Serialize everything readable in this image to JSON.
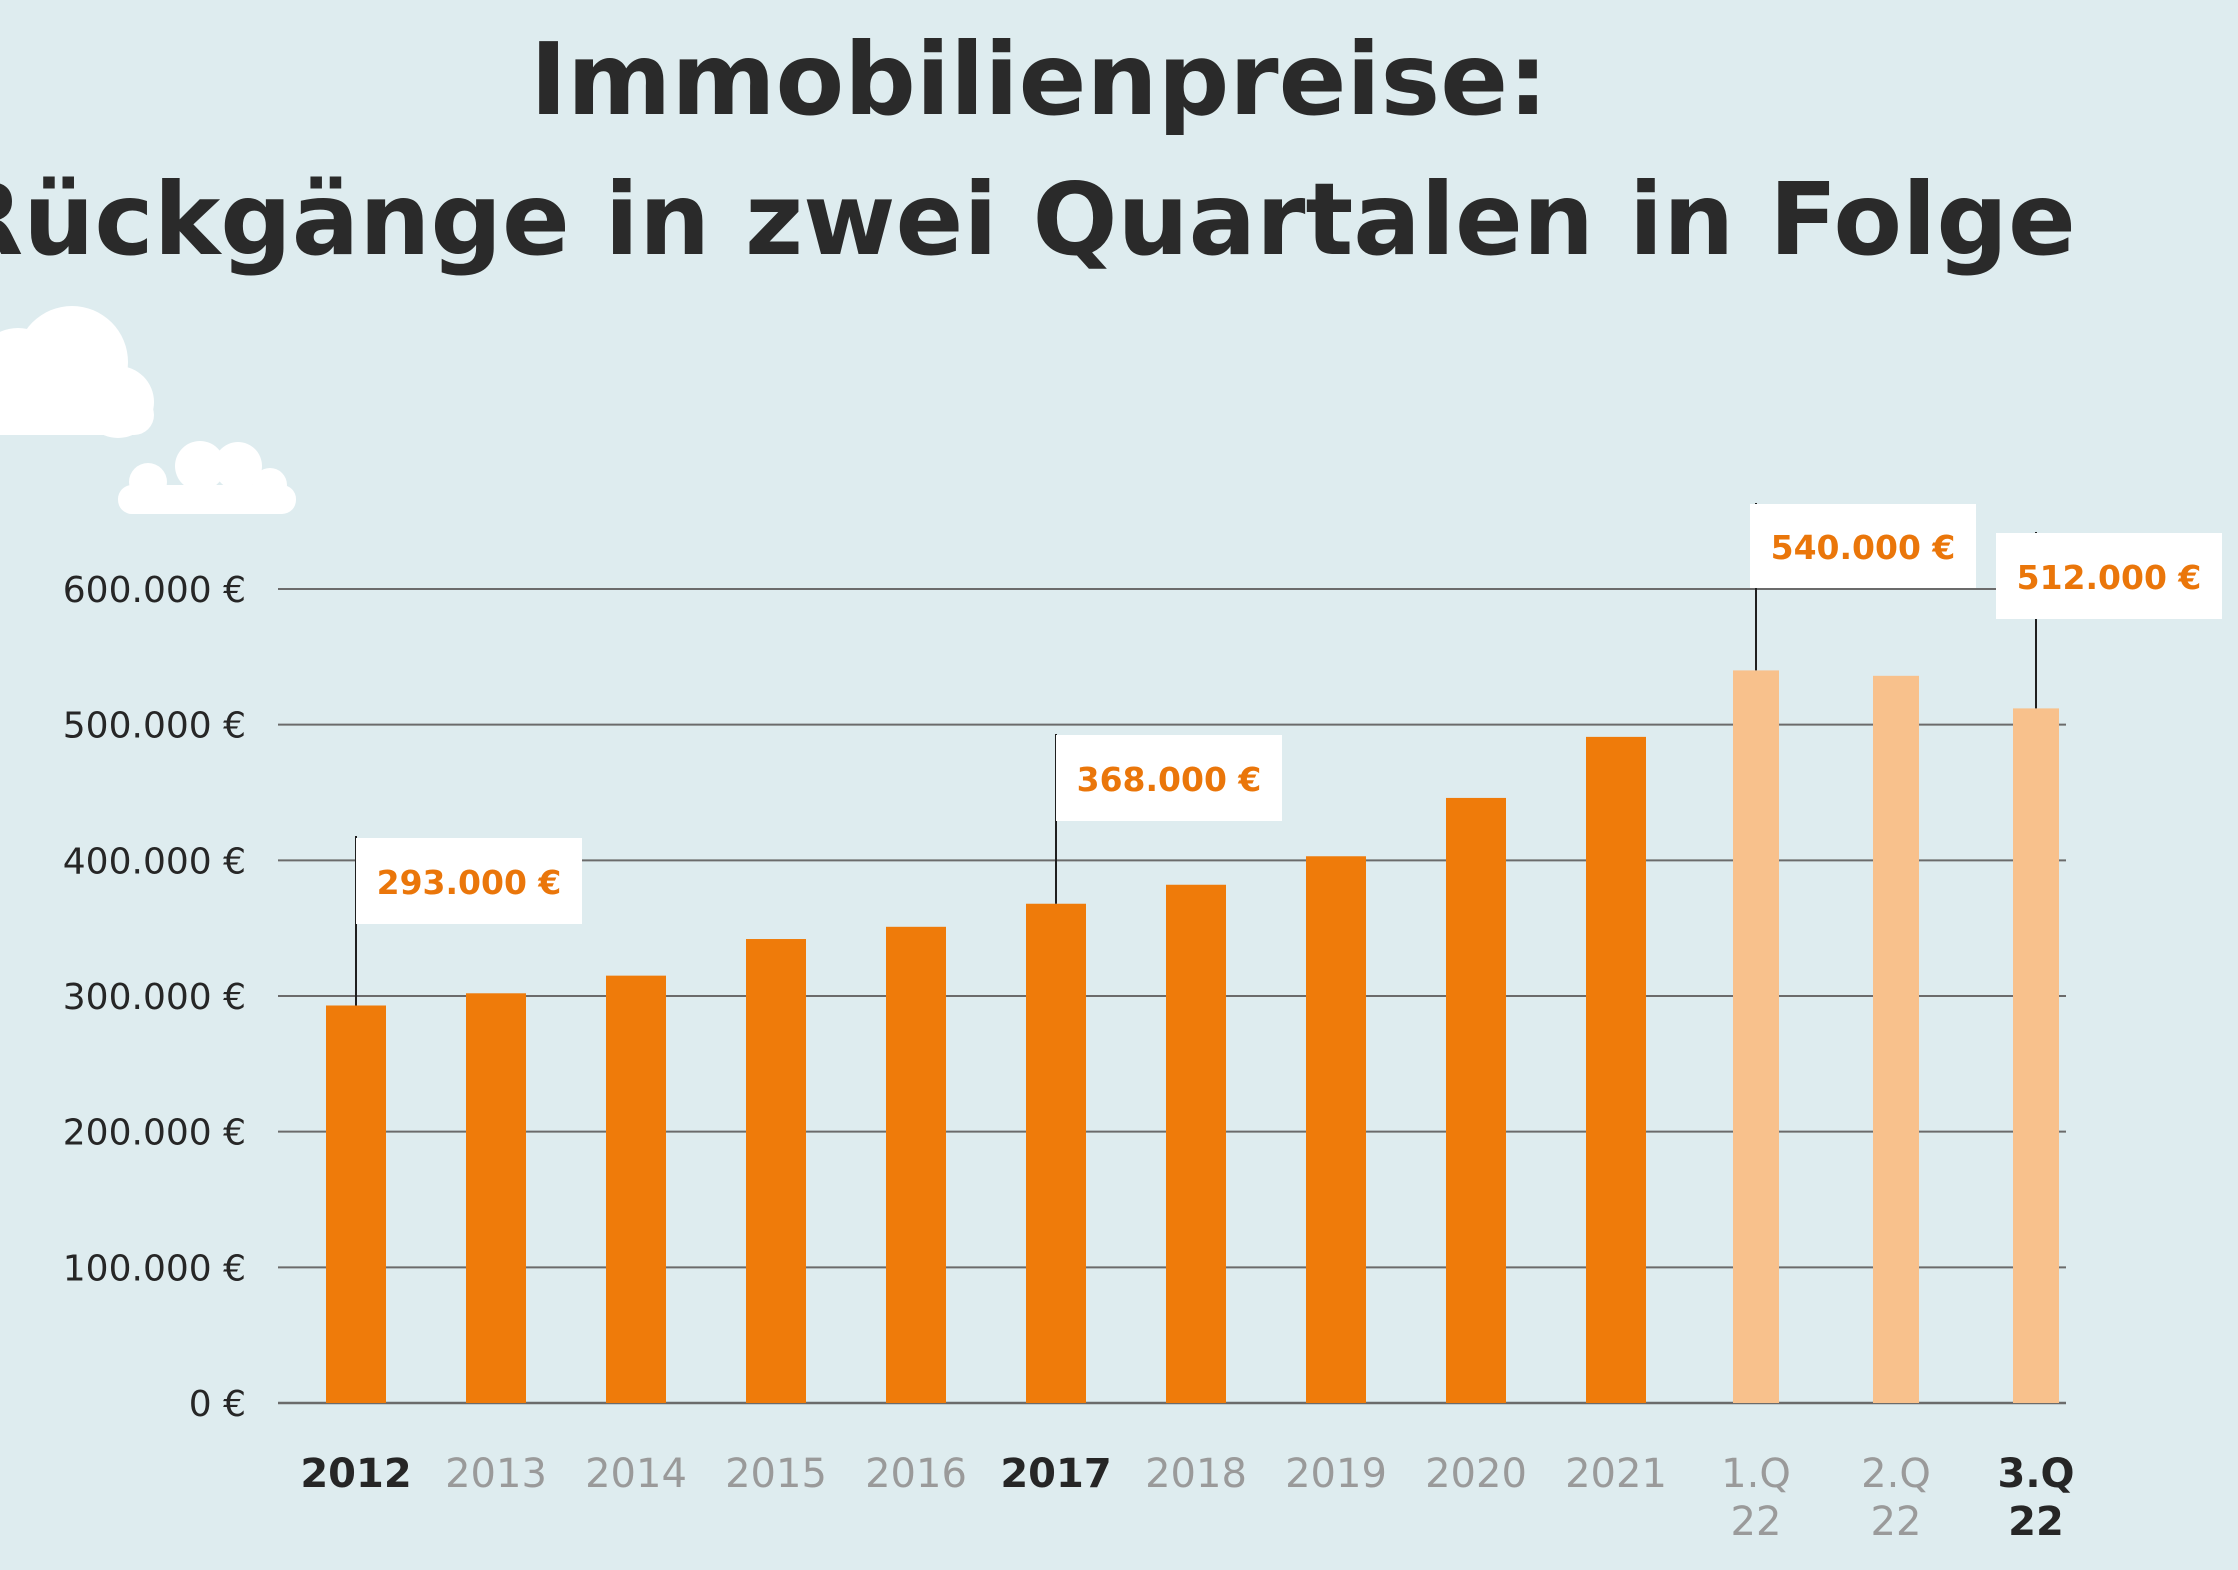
{
  "title": [
    "Immobilienpreise:",
    "Rückgänge in zwei Quartalen in Folge"
  ],
  "colors": {
    "background": "#deecef",
    "bar_primary": "#ef7b0a",
    "bar_light": "#f8c18c",
    "label_orange": "#ea760a",
    "tick_dark": "#262626",
    "tick_grey": "#9a9a9a",
    "grid": "#6b6b6b",
    "cloud": "#ffffff"
  },
  "chart_data": {
    "type": "bar",
    "title": "Immobilienpreise: Rückgänge in zwei Quartalen in Folge",
    "xlabel": "",
    "ylabel": "",
    "ylim": [
      0,
      600000
    ],
    "grid": true,
    "y_ticks": [
      {
        "value": 0,
        "label": "0 €"
      },
      {
        "value": 100000,
        "label": "100.000 €"
      },
      {
        "value": 200000,
        "label": "200.000 €"
      },
      {
        "value": 300000,
        "label": "300.000 €"
      },
      {
        "value": 400000,
        "label": "400.000 €"
      },
      {
        "value": 500000,
        "label": "500.000 €"
      },
      {
        "value": 600000,
        "label": "600.000 €"
      }
    ],
    "categories": [
      {
        "label": "2012",
        "value": 293000,
        "style": "primary",
        "tick_bold": true
      },
      {
        "label": "2013",
        "value": 302000,
        "style": "primary",
        "tick_bold": false
      },
      {
        "label": "2014",
        "value": 315000,
        "style": "primary",
        "tick_bold": false
      },
      {
        "label": "2015",
        "value": 342000,
        "style": "primary",
        "tick_bold": false
      },
      {
        "label": "2016",
        "value": 351000,
        "style": "primary",
        "tick_bold": false
      },
      {
        "label": "2017",
        "value": 368000,
        "style": "primary",
        "tick_bold": true
      },
      {
        "label": "2018",
        "value": 382000,
        "style": "primary",
        "tick_bold": false
      },
      {
        "label": "2019",
        "value": 403000,
        "style": "primary",
        "tick_bold": false
      },
      {
        "label": "2020",
        "value": 446000,
        "style": "primary",
        "tick_bold": false
      },
      {
        "label": "2021",
        "value": 491000,
        "style": "primary",
        "tick_bold": false
      },
      {
        "label": "1.Q 22",
        "value": 540000,
        "style": "light",
        "tick_bold": false
      },
      {
        "label": "2.Q 22",
        "value": 536000,
        "style": "light",
        "tick_bold": false
      },
      {
        "label": "3.Q 22",
        "value": 512000,
        "style": "light",
        "tick_bold": true
      }
    ],
    "annotations": [
      {
        "category": "2012",
        "text": "293.000 €"
      },
      {
        "category": "2017",
        "text": "368.000 €"
      },
      {
        "category": "1.Q 22",
        "text": "540.000 €"
      },
      {
        "category": "3.Q 22",
        "text": "512.000 €"
      }
    ]
  }
}
